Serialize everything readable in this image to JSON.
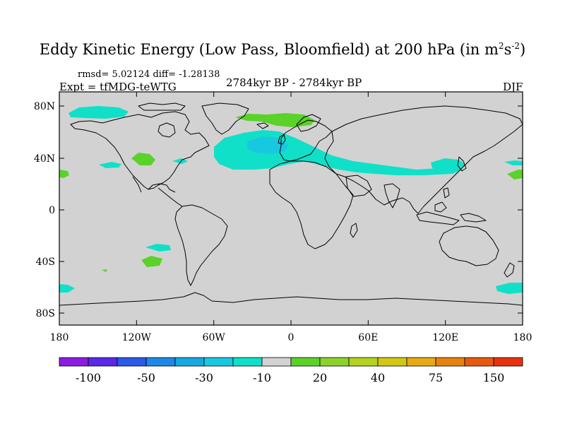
{
  "title": {
    "main": "Eddy Kinetic Energy (Low Pass, Bloomfield) at 200 hPa (in m",
    "sup1": "2",
    "mid": "s",
    "sup2": "-2",
    "close": ")"
  },
  "stats": "rmsd= 5.02124 diff= -1.28138",
  "experiment": "Expt = tfMDG-teWTG",
  "period": "2784kyr BP - 2784kyr BP",
  "season": "DJF",
  "axes": {
    "y_ticks": [
      "80N",
      "40N",
      "0",
      "40S",
      "80S"
    ],
    "x_ticks": [
      "180",
      "120W",
      "60W",
      "0",
      "60E",
      "120E",
      "180"
    ]
  },
  "colorbar": {
    "colors": [
      "#8c1ce0",
      "#5a28e6",
      "#2a5ae6",
      "#1e88e6",
      "#18a8e0",
      "#18c8e0",
      "#10e0c8",
      "#d2d2d2",
      "#5ad22a",
      "#8cd228",
      "#b4d21e",
      "#d2c814",
      "#e6aa14",
      "#e6820f",
      "#e65a0f",
      "#e6320f"
    ],
    "labels": [
      "-100",
      "-50",
      "-30",
      "-10",
      "20",
      "40",
      "75",
      "150"
    ]
  },
  "colors": {
    "background": "#d2d2d2",
    "cyan": "#10e0c8",
    "light_blue": "#18c8e0",
    "green": "#5ad22a"
  }
}
